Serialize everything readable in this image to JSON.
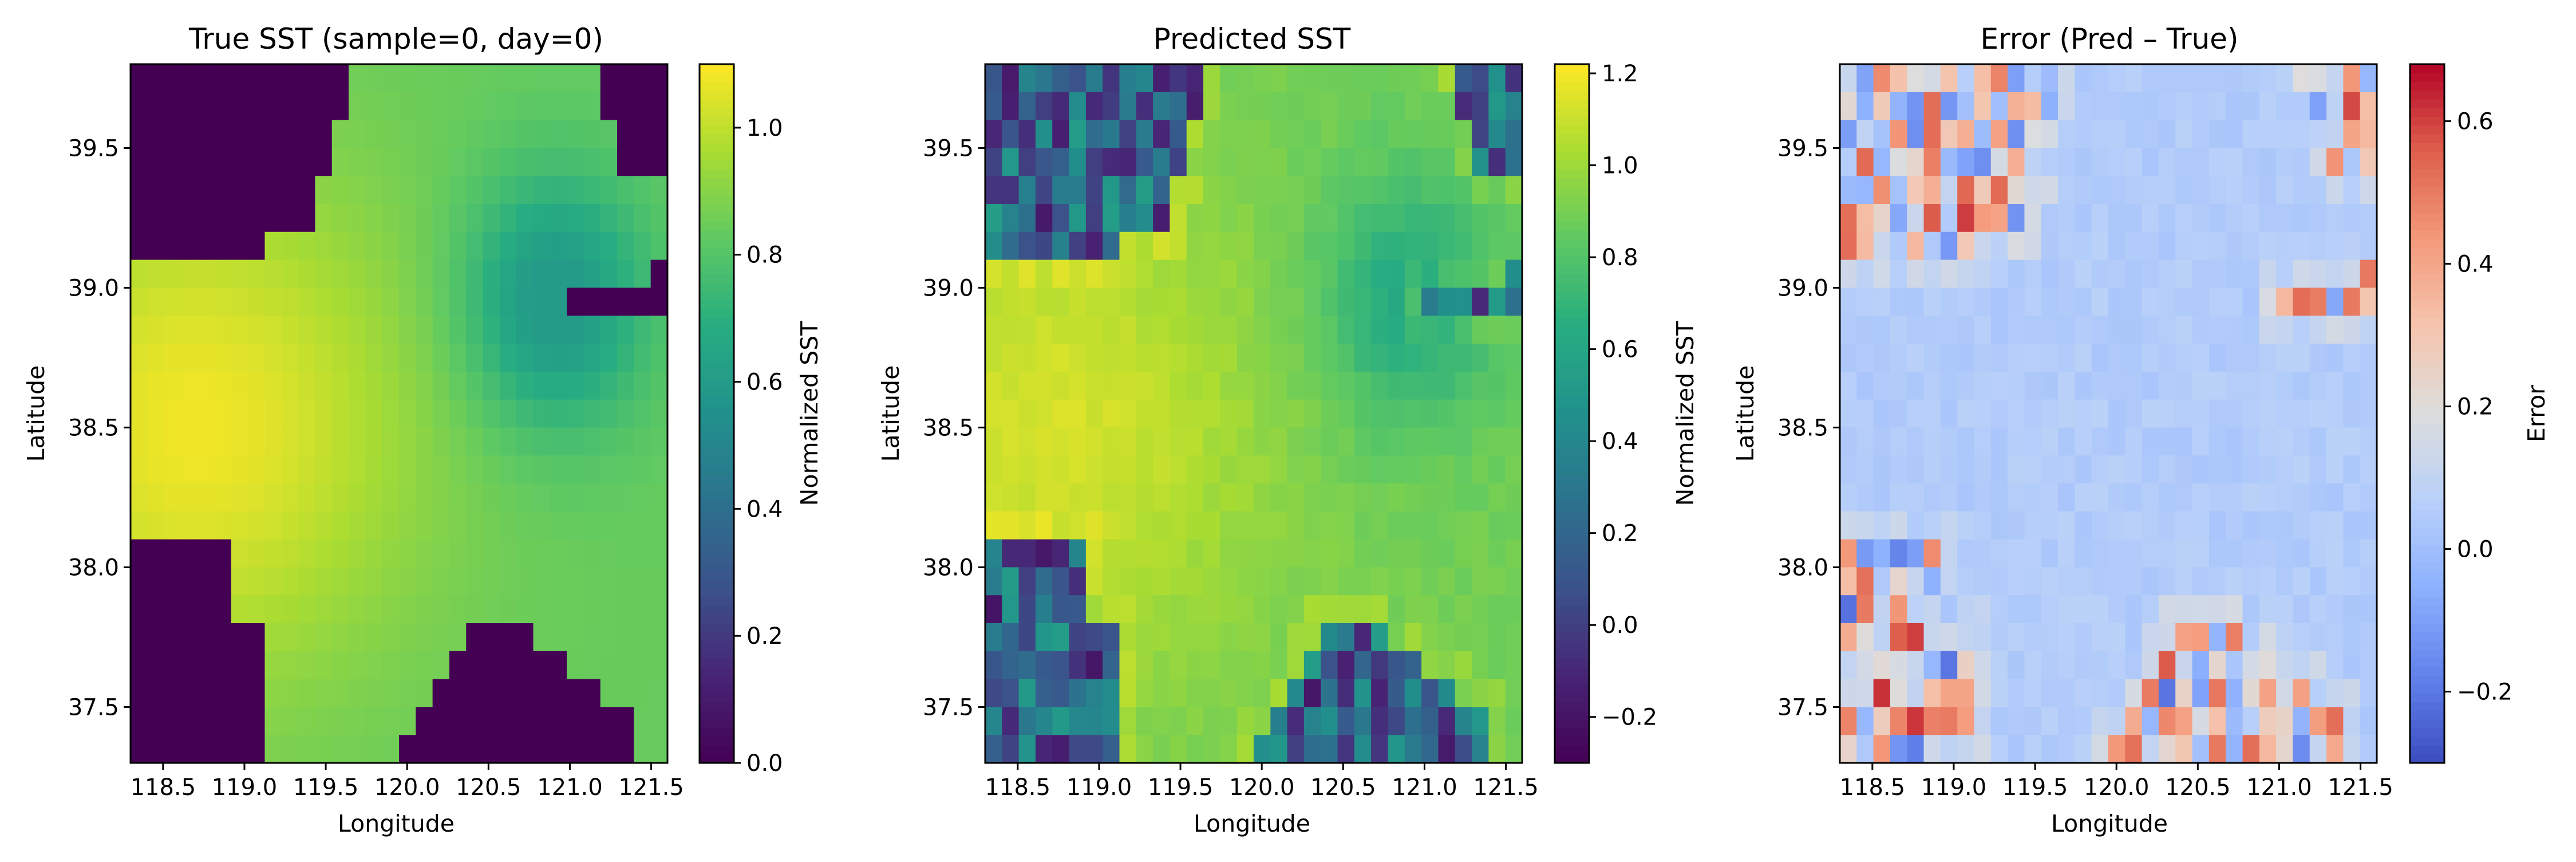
{
  "chart_data": [
    {
      "type": "heatmap",
      "title": "True SST (sample=0, day=0)",
      "xlabel": "Longitude",
      "ylabel": "Latitude",
      "x_ticks": [
        "118.5",
        "119.0",
        "119.5",
        "120.0",
        "120.5",
        "121.0",
        "121.5"
      ],
      "y_ticks": [
        "39.5",
        "39.0",
        "38.5",
        "38.0",
        "37.5"
      ],
      "xlim": [
        118.3,
        121.6
      ],
      "ylim": [
        37.3,
        39.8
      ],
      "grid": {
        "nx": 32,
        "ny": 25
      },
      "colormap": "viridis",
      "colorbar": {
        "label": "Normalized SST",
        "range": [
          0.0,
          1.1
        ],
        "ticks": [
          "0.0",
          "0.2",
          "0.4",
          "0.6",
          "0.8",
          "1.0"
        ]
      },
      "land_value": 0.0,
      "land_masks": [
        [
          [
            118.3,
            39.8
          ],
          [
            119.6,
            39.8
          ],
          [
            119.6,
            39.6
          ],
          [
            119.5,
            39.6
          ],
          [
            119.5,
            39.4
          ],
          [
            119.4,
            39.4
          ],
          [
            119.4,
            39.2
          ],
          [
            119.1,
            39.2
          ],
          [
            119.1,
            39.1
          ],
          [
            118.3,
            39.1
          ]
        ],
        [
          [
            121.2,
            39.8
          ],
          [
            121.6,
            39.8
          ],
          [
            121.6,
            39.4
          ],
          [
            121.3,
            39.4
          ],
          [
            121.3,
            39.6
          ],
          [
            121.2,
            39.6
          ]
        ],
        [
          [
            120.9,
            38.9
          ],
          [
            121.6,
            38.9
          ],
          [
            121.6,
            39.1
          ],
          [
            121.5,
            39.1
          ],
          [
            121.5,
            39.0
          ],
          [
            121.4,
            39.0
          ],
          [
            121.2,
            39.0
          ],
          [
            121.0,
            39.0
          ],
          [
            121.0,
            38.9
          ]
        ],
        [
          [
            118.3,
            38.1
          ],
          [
            118.9,
            38.1
          ],
          [
            118.9,
            37.8
          ],
          [
            119.1,
            37.8
          ],
          [
            119.1,
            37.3
          ],
          [
            118.3,
            37.3
          ]
        ],
        [
          [
            119.9,
            37.3
          ],
          [
            119.9,
            37.4
          ],
          [
            120.0,
            37.4
          ],
          [
            120.1,
            37.5
          ],
          [
            120.2,
            37.6
          ],
          [
            120.3,
            37.7
          ],
          [
            120.4,
            37.8
          ],
          [
            120.8,
            37.8
          ],
          [
            120.8,
            37.7
          ],
          [
            120.9,
            37.7
          ],
          [
            121.0,
            37.6
          ],
          [
            121.2,
            37.6
          ],
          [
            121.2,
            37.5
          ],
          [
            121.4,
            37.5
          ],
          [
            121.4,
            37.3
          ]
        ]
      ]
    },
    {
      "type": "heatmap",
      "title": "Predicted SST",
      "xlabel": "Longitude",
      "ylabel": "Latitude",
      "x_ticks": [
        "118.5",
        "119.0",
        "119.5",
        "120.0",
        "120.5",
        "121.0",
        "121.5"
      ],
      "y_ticks": [
        "39.5",
        "39.0",
        "38.5",
        "38.0",
        "37.5"
      ],
      "xlim": [
        118.3,
        121.6
      ],
      "ylim": [
        37.3,
        39.8
      ],
      "grid": {
        "nx": 32,
        "ny": 25
      },
      "colormap": "viridis",
      "colorbar": {
        "label": "Normalized SST",
        "range": [
          -0.3,
          1.22
        ],
        "ticks": [
          "−0.2",
          "0.0",
          "0.2",
          "0.4",
          "0.6",
          "0.8",
          "1.0",
          "1.2"
        ]
      },
      "land_value": -0.05
    },
    {
      "type": "heatmap",
      "title": "Error (Pred – True)",
      "xlabel": "Longitude",
      "ylabel": "Latitude",
      "x_ticks": [
        "118.5",
        "119.0",
        "119.5",
        "120.0",
        "120.5",
        "121.0",
        "121.5"
      ],
      "y_ticks": [
        "39.5",
        "39.0",
        "38.5",
        "38.0",
        "37.5"
      ],
      "xlim": [
        118.3,
        121.6
      ],
      "ylim": [
        37.3,
        39.8
      ],
      "grid": {
        "nx": 32,
        "ny": 25
      },
      "colormap": "coolwarm",
      "colorbar": {
        "label": "Error",
        "range": [
          -0.3,
          0.68
        ],
        "ticks": [
          "−0.2",
          "0.0",
          "0.2",
          "0.4",
          "0.6"
        ]
      },
      "ocean_error_typical": 0.05
    }
  ]
}
